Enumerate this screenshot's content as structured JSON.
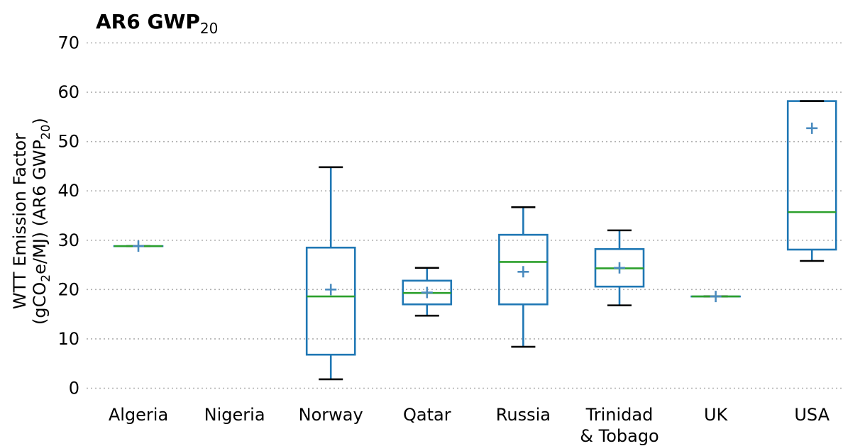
{
  "chart_data": {
    "type": "box",
    "title": "AR6 GWP",
    "title_subscript": "20",
    "ylabel_line1": "WTT Emission Factor",
    "ylabel_line2_prefix": "(gCO",
    "ylabel_line2_sub1": "2",
    "ylabel_line2_mid": "e/MJ) (AR6 GWP",
    "ylabel_line2_sub2": "20",
    "ylabel_line2_suffix": ")",
    "ylim": [
      0,
      70
    ],
    "yticks": [
      "0",
      "10",
      "20",
      "30",
      "40",
      "50",
      "60",
      "70"
    ],
    "grid": "horizontal dotted",
    "categories": [
      {
        "label": [
          "Algeria"
        ],
        "whisker_low": 28.8,
        "q1": 28.8,
        "median": 28.8,
        "q3": 28.8,
        "whisker_high": 28.8,
        "mean": 28.8
      },
      {
        "label": [
          "Nigeria"
        ]
      },
      {
        "label": [
          "Norway"
        ],
        "whisker_low": 1.8,
        "q1": 6.8,
        "median": 18.6,
        "q3": 28.5,
        "whisker_high": 44.8,
        "mean": 20.0
      },
      {
        "label": [
          "Qatar"
        ],
        "whisker_low": 14.7,
        "q1": 17.0,
        "median": 19.3,
        "q3": 21.8,
        "whisker_high": 24.4,
        "mean": 19.4
      },
      {
        "label": [
          "Russia"
        ],
        "whisker_low": 8.4,
        "q1": 17.0,
        "median": 25.6,
        "q3": 31.1,
        "whisker_high": 36.7,
        "mean": 23.6
      },
      {
        "label": [
          "Trinidad",
          "& Tobago"
        ],
        "whisker_low": 16.8,
        "q1": 20.6,
        "median": 24.3,
        "q3": 28.2,
        "whisker_high": 32.0,
        "mean": 24.4
      },
      {
        "label": [
          "UK"
        ],
        "whisker_low": 18.6,
        "q1": 18.6,
        "median": 18.6,
        "q3": 18.6,
        "whisker_high": 18.6,
        "mean": 18.6
      },
      {
        "label": [
          "USA"
        ],
        "whisker_low": 25.8,
        "q1": 28.1,
        "median": 35.7,
        "q3": 58.2,
        "whisker_high": 58.2,
        "mean": 52.7
      }
    ],
    "colors": {
      "box": "#1f77b4",
      "median": "#2ca02c",
      "whisker_cap": "#000000",
      "mean_marker": "#4a8bbf",
      "grid": "#b0b0b0"
    }
  }
}
